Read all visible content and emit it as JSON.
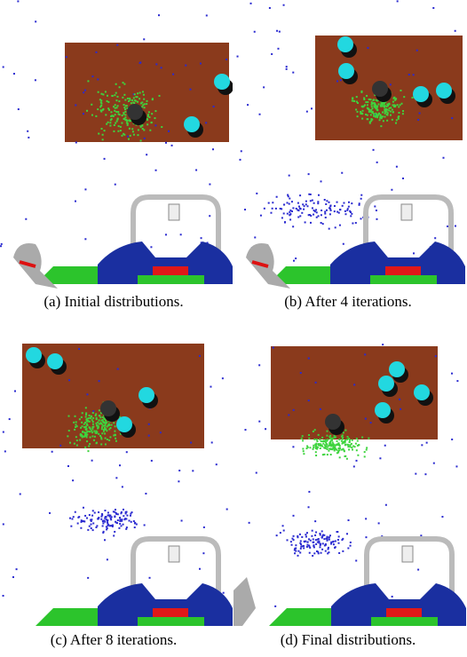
{
  "figure": {
    "captions": [
      "(a) Initial distributions.",
      "(b) After 4 iterations.",
      "(c) After 8 iterations.",
      "(d) Final distributions."
    ]
  }
}
